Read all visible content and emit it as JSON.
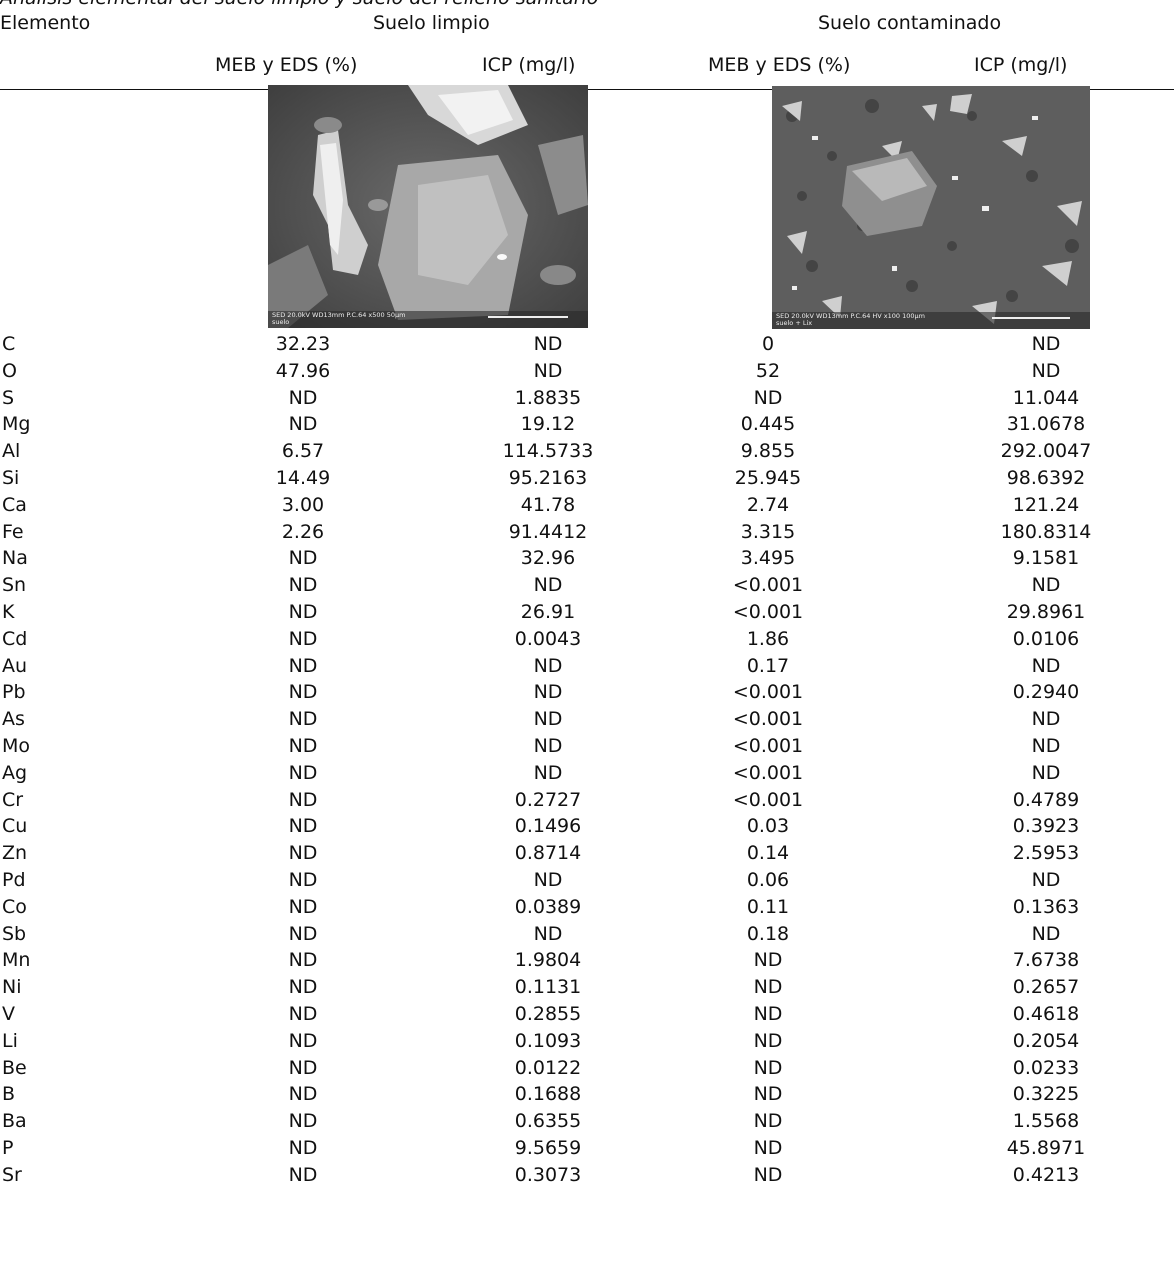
{
  "caption": "Análisis elemental del suelo limpio y suelo del relleno sanitario",
  "headers": {
    "elemento": "Elemento",
    "group_clean": "Suelo limpio",
    "group_contaminated": "Suelo contaminado",
    "sub_meb_clean": "MEB y EDS (%)",
    "sub_icp_clean": "ICP (mg/l)",
    "sub_meb_cont": "MEB y EDS (%)",
    "sub_icp_cont": "ICP (mg/l)"
  },
  "images": {
    "clean": {
      "label_line1": "SED 20.0kV WD13mm P.C.64   x500   50µm",
      "label_line2": "suelo"
    },
    "contaminated": {
      "label_line1": "SED 20.0kV WD13mm P.C.64 HV  x100   100µm",
      "label_line2": "suelo + Lix"
    }
  },
  "rows": [
    {
      "el": "C",
      "meb_clean": "32.23",
      "icp_clean": "ND",
      "meb_cont": "0",
      "icp_cont": "ND"
    },
    {
      "el": "O",
      "meb_clean": "47.96",
      "icp_clean": "ND",
      "meb_cont": "52",
      "icp_cont": "ND"
    },
    {
      "el": "S",
      "meb_clean": "ND",
      "icp_clean": "1.8835",
      "meb_cont": "ND",
      "icp_cont": "11.044"
    },
    {
      "el": "Mg",
      "meb_clean": "ND",
      "icp_clean": "19.12",
      "meb_cont": "0.445",
      "icp_cont": "31.0678"
    },
    {
      "el": "Al",
      "meb_clean": "6.57",
      "icp_clean": "114.5733",
      "meb_cont": "9.855",
      "icp_cont": "292.0047"
    },
    {
      "el": "Si",
      "meb_clean": "14.49",
      "icp_clean": "95.2163",
      "meb_cont": "25.945",
      "icp_cont": "98.6392"
    },
    {
      "el": "Ca",
      "meb_clean": "3.00",
      "icp_clean": "41.78",
      "meb_cont": "2.74",
      "icp_cont": "121.24"
    },
    {
      "el": "Fe",
      "meb_clean": "2.26",
      "icp_clean": "91.4412",
      "meb_cont": "3.315",
      "icp_cont": "180.8314"
    },
    {
      "el": "Na",
      "meb_clean": "ND",
      "icp_clean": "32.96",
      "meb_cont": "3.495",
      "icp_cont": "9.1581"
    },
    {
      "el": "Sn",
      "meb_clean": "ND",
      "icp_clean": "ND",
      "meb_cont": "<0.001",
      "icp_cont": "ND"
    },
    {
      "el": "K",
      "meb_clean": "ND",
      "icp_clean": "26.91",
      "meb_cont": "<0.001",
      "icp_cont": "29.8961"
    },
    {
      "el": "Cd",
      "meb_clean": "ND",
      "icp_clean": "0.0043",
      "meb_cont": "1.86",
      "icp_cont": "0.0106"
    },
    {
      "el": "Au",
      "meb_clean": "ND",
      "icp_clean": "ND",
      "meb_cont": "0.17",
      "icp_cont": "ND"
    },
    {
      "el": "Pb",
      "meb_clean": "ND",
      "icp_clean": "ND",
      "meb_cont": "<0.001",
      "icp_cont": "0.2940"
    },
    {
      "el": "As",
      "meb_clean": "ND",
      "icp_clean": "ND",
      "meb_cont": "<0.001",
      "icp_cont": "ND"
    },
    {
      "el": "Mo",
      "meb_clean": "ND",
      "icp_clean": "ND",
      "meb_cont": "<0.001",
      "icp_cont": "ND"
    },
    {
      "el": "Ag",
      "meb_clean": "ND",
      "icp_clean": "ND",
      "meb_cont": "<0.001",
      "icp_cont": "ND"
    },
    {
      "el": "Cr",
      "meb_clean": "ND",
      "icp_clean": "0.2727",
      "meb_cont": "<0.001",
      "icp_cont": "0.4789"
    },
    {
      "el": "Cu",
      "meb_clean": "ND",
      "icp_clean": "0.1496",
      "meb_cont": "0.03",
      "icp_cont": "0.3923"
    },
    {
      "el": "Zn",
      "meb_clean": "ND",
      "icp_clean": "0.8714",
      "meb_cont": "0.14",
      "icp_cont": "2.5953"
    },
    {
      "el": "Pd",
      "meb_clean": "ND",
      "icp_clean": "ND",
      "meb_cont": "0.06",
      "icp_cont": "ND"
    },
    {
      "el": "Co",
      "meb_clean": "ND",
      "icp_clean": "0.0389",
      "meb_cont": "0.11",
      "icp_cont": "0.1363"
    },
    {
      "el": "Sb",
      "meb_clean": "ND",
      "icp_clean": "ND",
      "meb_cont": "0.18",
      "icp_cont": "ND"
    },
    {
      "el": "Mn",
      "meb_clean": "ND",
      "icp_clean": "1.9804",
      "meb_cont": "ND",
      "icp_cont": "7.6738"
    },
    {
      "el": "Ni",
      "meb_clean": "ND",
      "icp_clean": "0.1131",
      "meb_cont": "ND",
      "icp_cont": "0.2657"
    },
    {
      "el": "V",
      "meb_clean": "ND",
      "icp_clean": "0.2855",
      "meb_cont": "ND",
      "icp_cont": "0.4618"
    },
    {
      "el": "Li",
      "meb_clean": "ND",
      "icp_clean": "0.1093",
      "meb_cont": "ND",
      "icp_cont": "0.2054"
    },
    {
      "el": "Be",
      "meb_clean": "ND",
      "icp_clean": "0.0122",
      "meb_cont": "ND",
      "icp_cont": "0.0233"
    },
    {
      "el": "B",
      "meb_clean": "ND",
      "icp_clean": "0.1688",
      "meb_cont": "ND",
      "icp_cont": "0.3225"
    },
    {
      "el": "Ba",
      "meb_clean": "ND",
      "icp_clean": "0.6355",
      "meb_cont": "ND",
      "icp_cont": "1.5568"
    },
    {
      "el": "P",
      "meb_clean": "ND",
      "icp_clean": "9.5659",
      "meb_cont": "ND",
      "icp_cont": "45.8971"
    },
    {
      "el": "Sr",
      "meb_clean": "ND",
      "icp_clean": "0.3073",
      "meb_cont": "ND",
      "icp_cont": "0.4213"
    }
  ]
}
